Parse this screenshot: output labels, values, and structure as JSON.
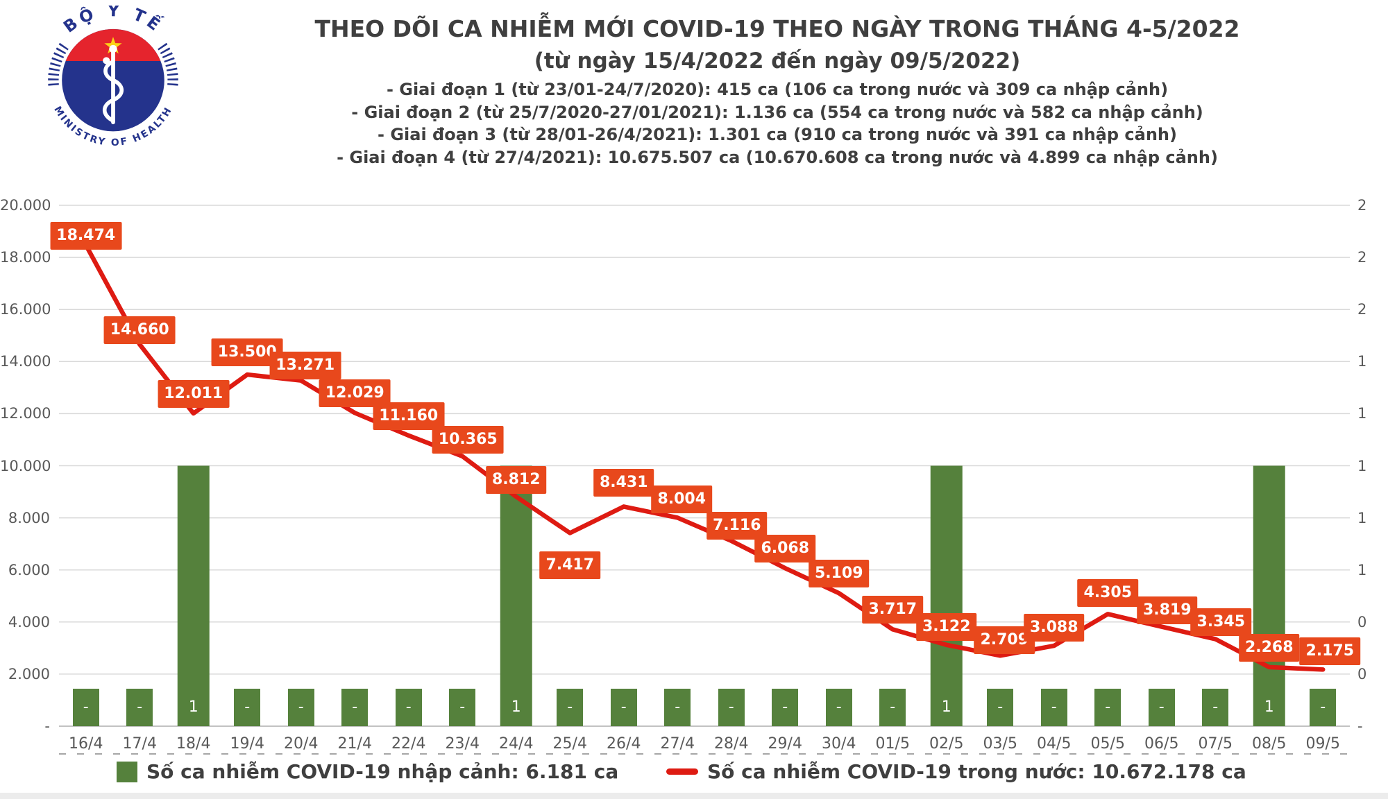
{
  "header": {
    "title": "THEO DÕI CA NHIỄM MỚI COVID-19 THEO NGÀY TRONG THÁNG 4-5/2022",
    "subtitle": "(từ ngày 15/4/2022 đến ngày 09/5/2022)",
    "notes": [
      "- Giai đoạn 1 (từ 23/01-24/7/2020): 415 ca (106 ca trong nước và 309 ca nhập cảnh)",
      "- Giai đoạn 2 (từ 25/7/2020-27/01/2021): 1.136 ca (554 ca trong nước và 582 ca nhập cảnh)",
      "- Giai đoạn 3 (từ 28/01-26/4/2021): 1.301 ca (910 ca trong nước và 391 ca nhập cảnh)",
      "- Giai đoạn 4 (từ 27/4/2021): 10.675.507 ca (10.670.608 ca trong nước và 4.899 ca nhập cảnh)"
    ],
    "logo": {
      "top_text": "BỘ Y TẾ",
      "bottom_text": "MINISTRY OF HEALTH"
    }
  },
  "chart_data": {
    "type": "combo-bar-line",
    "categories": [
      "16/4",
      "17/4",
      "18/4",
      "19/4",
      "20/4",
      "21/4",
      "22/4",
      "23/4",
      "24/4",
      "25/4",
      "26/4",
      "27/4",
      "28/4",
      "29/4",
      "30/4",
      "01/5",
      "02/5",
      "03/5",
      "04/5",
      "05/5",
      "06/5",
      "07/5",
      "08/5",
      "09/5"
    ],
    "series": [
      {
        "name": "Số ca nhiễm COVID-19 nhập cảnh",
        "type": "bar",
        "axis": "secondary",
        "color": "#55813C",
        "values": [
          0,
          0,
          1,
          0,
          0,
          0,
          0,
          0,
          1,
          0,
          0,
          0,
          0,
          0,
          0,
          0,
          1,
          0,
          0,
          0,
          0,
          0,
          1,
          0
        ],
        "labels": [
          "-",
          "-",
          "1",
          "-",
          "-",
          "-",
          "-",
          "-",
          "1",
          "-",
          "-",
          "-",
          "-",
          "-",
          "-",
          "-",
          "1",
          "-",
          "-",
          "-",
          "-",
          "-",
          "1",
          "-"
        ]
      },
      {
        "name": "Số ca nhiễm COVID-19 trong nước",
        "type": "line",
        "axis": "primary",
        "color": "#DE1B12",
        "label_bg": "#E8481C",
        "values": [
          18474,
          14660,
          12011,
          13500,
          13271,
          12029,
          11160,
          10365,
          8812,
          7417,
          8431,
          8004,
          7116,
          6068,
          5109,
          3717,
          3122,
          2709,
          3088,
          4305,
          3819,
          3345,
          2268,
          2175
        ],
        "labels": [
          "18.474",
          "14.660",
          "12.011",
          "13.500",
          "13.271",
          "12.029",
          "11.160",
          "10.365",
          "8.812",
          "7.417",
          "8.431",
          "8.004",
          "7.116",
          "6.068",
          "5.109",
          "3.717",
          "3.122",
          "2.709",
          "3.088",
          "4.305",
          "3.819",
          "3.345",
          "2.268",
          "2.175"
        ]
      }
    ],
    "primary_axis": {
      "min": 0,
      "max": 20000,
      "ticks": [
        "20.000",
        "18.000",
        "16.000",
        "14.000",
        "12.000",
        "10.000",
        "8.000",
        "6.000",
        "4.000",
        "2.000",
        "-"
      ]
    },
    "secondary_axis": {
      "min": 0,
      "max": 2,
      "ticks": [
        "2",
        "2",
        "2",
        "1",
        "1",
        "1",
        "1",
        "1",
        "0",
        "0",
        "-"
      ]
    },
    "grid": true,
    "legend": [
      {
        "label": "Số ca nhiễm COVID-19 nhập cảnh: 6.181 ca",
        "marker": "square",
        "color": "#55813C"
      },
      {
        "label": "Số ca nhiễm COVID-19 trong nước: 10.672.178 ca",
        "marker": "line",
        "color": "#DE1B12"
      }
    ],
    "colors": {
      "grid": "#D9D9D9",
      "axis": "#C2C2C2",
      "tick_dashes": "#A6A6A6",
      "axis_text": "#595959"
    }
  }
}
